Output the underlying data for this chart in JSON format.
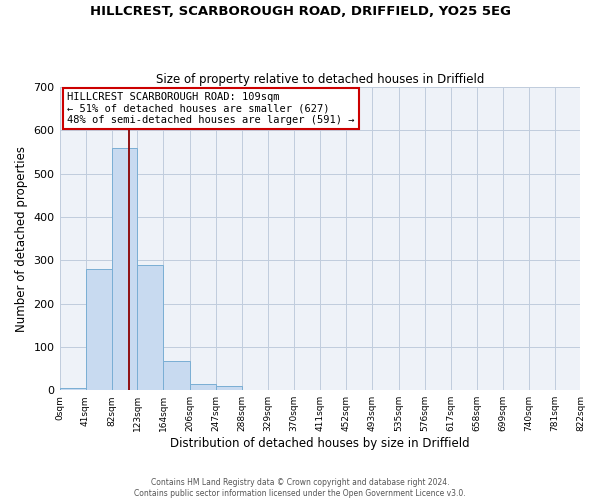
{
  "title1": "HILLCREST, SCARBOROUGH ROAD, DRIFFIELD, YO25 5EG",
  "title2": "Size of property relative to detached houses in Driffield",
  "xlabel": "Distribution of detached houses by size in Driffield",
  "ylabel": "Number of detached properties",
  "bin_edges": [
    0,
    41,
    82,
    123,
    164,
    206,
    247,
    288,
    329,
    370,
    411,
    452,
    493,
    535,
    576,
    617,
    658,
    699,
    740,
    781,
    822
  ],
  "bar_heights": [
    6,
    280,
    560,
    290,
    67,
    14,
    9,
    0,
    0,
    0,
    0,
    0,
    0,
    0,
    0,
    0,
    0,
    0,
    0,
    0
  ],
  "bar_color": "#c8daf0",
  "bar_edgecolor": "#7aaed4",
  "property_line_x": 109,
  "property_line_color": "#8b0000",
  "annotation_box_edgecolor": "#cc0000",
  "annotation_text_line1": "HILLCREST SCARBOROUGH ROAD: 109sqm",
  "annotation_text_line2": "← 51% of detached houses are smaller (627)",
  "annotation_text_line3": "48% of semi-detached houses are larger (591) →",
  "ylim": [
    0,
    700
  ],
  "yticks": [
    0,
    100,
    200,
    300,
    400,
    500,
    600,
    700
  ],
  "tick_labels": [
    "0sqm",
    "41sqm",
    "82sqm",
    "123sqm",
    "164sqm",
    "206sqm",
    "247sqm",
    "288sqm",
    "329sqm",
    "370sqm",
    "411sqm",
    "452sqm",
    "493sqm",
    "535sqm",
    "576sqm",
    "617sqm",
    "658sqm",
    "699sqm",
    "740sqm",
    "781sqm",
    "822sqm"
  ],
  "footer_line1": "Contains HM Land Registry data © Crown copyright and database right 2024.",
  "footer_line2": "Contains public sector information licensed under the Open Government Licence v3.0.",
  "background_color": "#ffffff",
  "plot_bg_color": "#eef2f8"
}
